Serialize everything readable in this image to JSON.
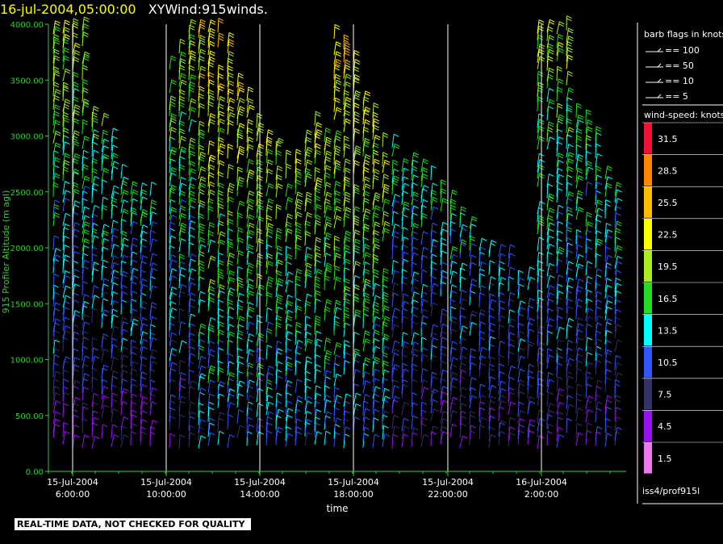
{
  "header": {
    "date_label": "16-jul-2004,05:00:00",
    "plot_label": "XYWind:915winds."
  },
  "warning_text": "REAL-TIME DATA, NOT CHECKED FOR QUALITY",
  "colors": {
    "axis": "#33cc33",
    "gridline": "#ffffff",
    "background": "#000000"
  },
  "legend": {
    "flags_title": "barb flags in knots",
    "flags": [
      "== 100",
      "== 50",
      "== 10",
      "== 5"
    ],
    "speed_title": "wind-speed: knots",
    "speed_bins": [
      {
        "label": "31.5",
        "color": "#ee1133"
      },
      {
        "label": "28.5",
        "color": "#ff8800"
      },
      {
        "label": "25.5",
        "color": "#ffbb00"
      },
      {
        "label": "22.5",
        "color": "#ffff00"
      },
      {
        "label": "19.5",
        "color": "#aaee22"
      },
      {
        "label": "16.5",
        "color": "#22dd22"
      },
      {
        "label": "13.5",
        "color": "#00ffff"
      },
      {
        "label": "10.5",
        "color": "#3355ff"
      },
      {
        "label": "7.5",
        "color": "#333366"
      },
      {
        "label": "4.5",
        "color": "#9911ee"
      },
      {
        "label": "1.5",
        "color": "#ee77ee"
      }
    ],
    "source": "iss4/prof915l"
  },
  "chart_data": {
    "type": "scatter",
    "title": "XYWind:915winds.",
    "xlabel": "time",
    "ylabel": "915 Profiler Altitude (m agl)",
    "ylim": [
      0,
      4000
    ],
    "yticks": [
      "0.00",
      "500.00",
      "1000.00",
      "1500.00",
      "2000.00",
      "2500.00",
      "3000.00",
      "3500.00",
      "4000.00"
    ],
    "xticks": [
      {
        "date": "15-Jul-2004",
        "time": "6:00:00"
      },
      {
        "date": "15-Jul-2004",
        "time": "10:00:00"
      },
      {
        "date": "15-Jul-2004",
        "time": "14:00:00"
      },
      {
        "date": "15-Jul-2004",
        "time": "18:00:00"
      },
      {
        "date": "15-Jul-2004",
        "time": "22:00:00"
      },
      {
        "date": "16-Jul-2004",
        "time": "2:00:00"
      }
    ],
    "xlim": [
      "15-Jul-2004 05:00",
      "16-Jul-2004 05:00"
    ],
    "grid": "vertical lines at x ticks",
    "legend_position": "right"
  }
}
